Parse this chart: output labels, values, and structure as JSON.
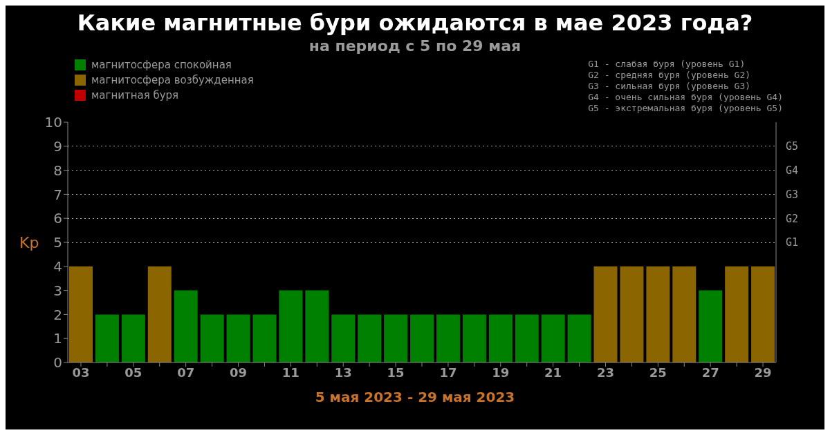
{
  "chart_data": {
    "type": "bar",
    "title": "Какие магнитные бури ожидаются в мае 2023 года?",
    "subtitle": "на период с 5 по 29 мая",
    "ylabel": "Kp",
    "categories": [
      "03",
      null,
      "05",
      null,
      "07",
      null,
      "09",
      null,
      "11",
      null,
      "13",
      null,
      "15",
      null,
      "17",
      null,
      "19",
      null,
      "21",
      null,
      "23",
      null,
      "25",
      null,
      "27",
      null,
      "29"
    ],
    "series": [
      {
        "name": "магнитосфера спокойная",
        "color": "#008000",
        "values": [
          null,
          2,
          2,
          null,
          3,
          2,
          2,
          2,
          3,
          3,
          2,
          2,
          2,
          2,
          2,
          2,
          2,
          2,
          2,
          2,
          null,
          null,
          null,
          null,
          3,
          null,
          null
        ]
      },
      {
        "name": "магнитосфера возбужденная",
        "color": "#8a6500",
        "values": [
          4,
          null,
          null,
          4,
          null,
          null,
          null,
          null,
          null,
          null,
          null,
          null,
          null,
          null,
          null,
          null,
          null,
          null,
          null,
          null,
          4,
          4,
          4,
          4,
          null,
          4,
          4
        ]
      },
      {
        "name": "магнитная буря",
        "color": "#c00000",
        "values": [
          null,
          null,
          null,
          null,
          null,
          null,
          null,
          null,
          null,
          null,
          null,
          null,
          null,
          null,
          null,
          null,
          null,
          null,
          null,
          null,
          null,
          null,
          null,
          null,
          null,
          null,
          null
        ]
      }
    ],
    "stacked": true,
    "ylim": [
      0,
      10
    ],
    "yticks": [
      0,
      1,
      2,
      3,
      4,
      5,
      6,
      7,
      8,
      9,
      10
    ],
    "ref_lines": [
      {
        "axis": "y",
        "value": 5,
        "label": "G1",
        "line_style": "dotted"
      },
      {
        "axis": "y",
        "value": 6,
        "label": "G2",
        "line_style": "dotted"
      },
      {
        "axis": "y",
        "value": 7,
        "label": "G3",
        "line_style": "dotted"
      },
      {
        "axis": "y",
        "value": 8,
        "label": "G4",
        "line_style": "dotted"
      },
      {
        "axis": "y",
        "value": 9,
        "label": "G5",
        "line_style": "dotted"
      }
    ],
    "legend": "top left",
    "annotations": [
      "5 мая 2023 - 29 мая 2023",
      "G1 - слабая буря (уровень G1)",
      "G2 - средняя буря (уровень G2)",
      "G3 - сильная буря (уровень G3)",
      "G4 - очень сильная буря (уровень G4)",
      "G5 - экстремальная буря (уровень G5)"
    ]
  }
}
